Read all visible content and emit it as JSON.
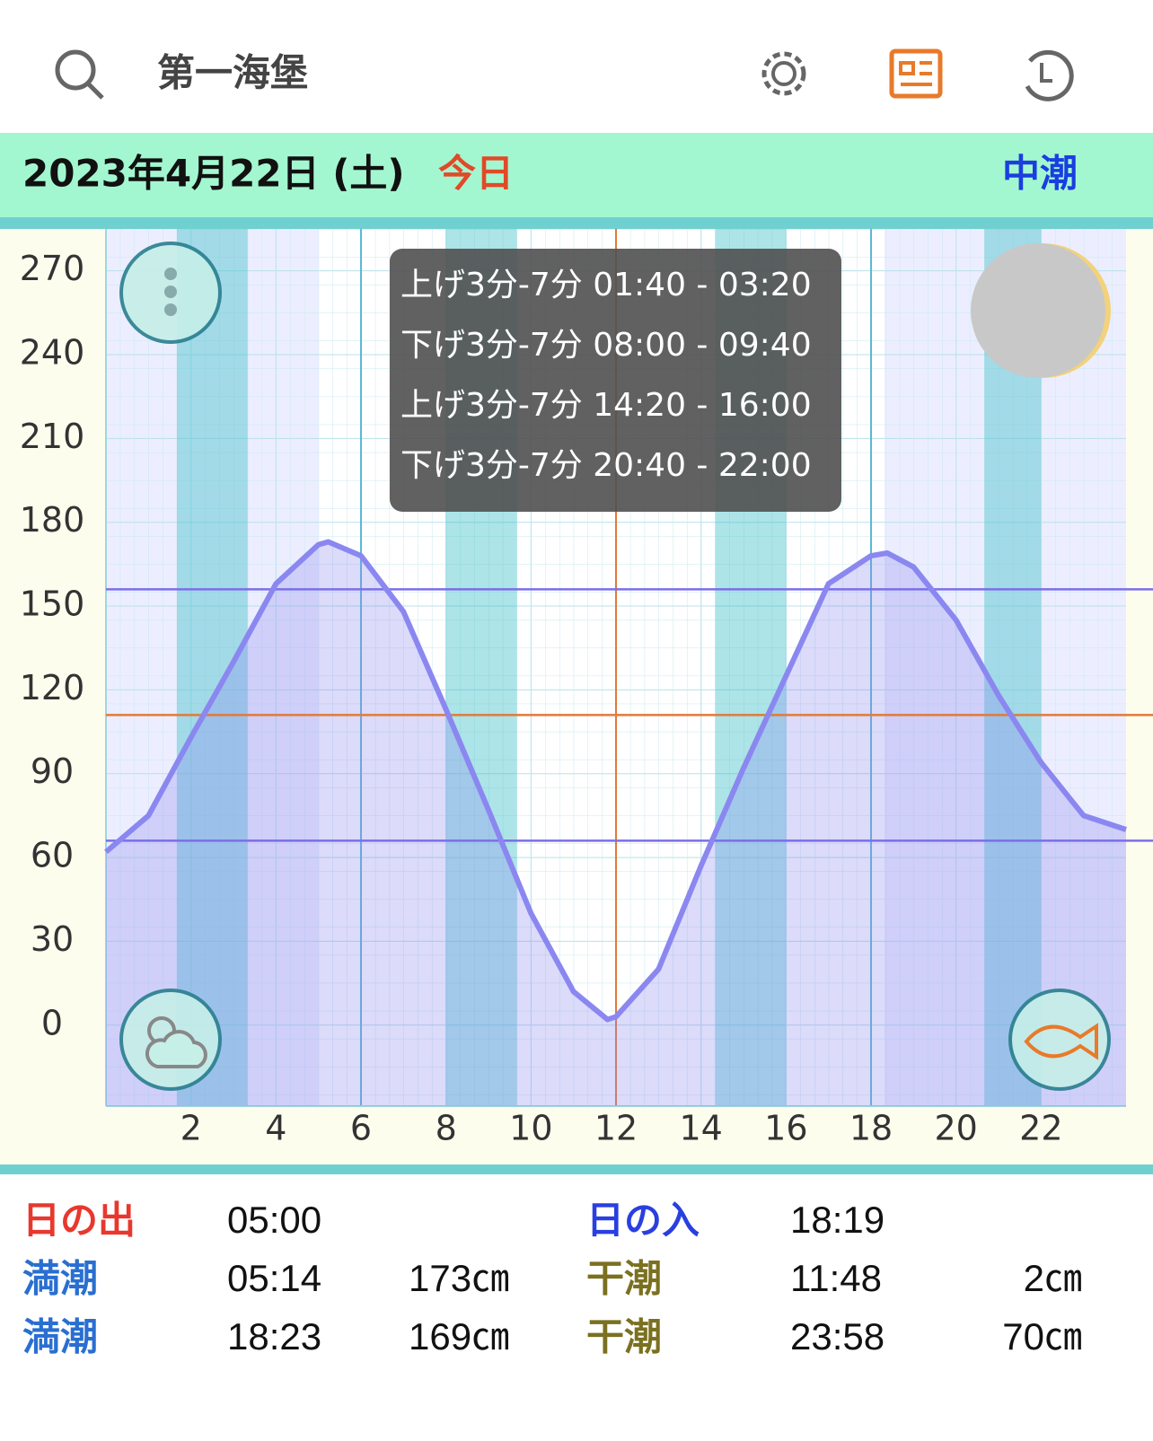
{
  "header": {
    "title": "第一海堡"
  },
  "date_bar": {
    "date": "2023年4月22日 (土)",
    "today": "今日",
    "tide_type": "中潮"
  },
  "chart_data": {
    "type": "area-line",
    "x": [
      0,
      1,
      2,
      3,
      4,
      5,
      5.23,
      6,
      7,
      8,
      9,
      10,
      11,
      11.8,
      12,
      13,
      14,
      15,
      16,
      17,
      18,
      18.38,
      19,
      20,
      21,
      22,
      23,
      24
    ],
    "series": [
      {
        "color": "#8b87f0",
        "values": [
          62,
          75,
          103,
          130,
          158,
          172,
          173,
          168,
          148,
          113,
          77,
          40,
          12,
          2,
          3,
          20,
          57,
          92,
          125,
          158,
          168,
          169,
          164,
          145,
          118,
          94,
          75,
          70
        ]
      }
    ],
    "xlim": [
      0,
      24
    ],
    "xticks": [
      2,
      4,
      6,
      8,
      10,
      12,
      14,
      16,
      18,
      20,
      22
    ],
    "ylim": [
      -29,
      285
    ],
    "yticks": [
      0,
      30,
      60,
      90,
      120,
      150,
      180,
      210,
      240,
      270
    ],
    "bands": [
      {
        "label": "上げ3分-7分 01:40 - 03:20",
        "start": 1.667,
        "end": 3.333
      },
      {
        "label": "下げ3分-7分 08:00 - 09:40",
        "start": 8,
        "end": 9.667
      },
      {
        "label": "上げ3分-7分 14:20 - 16:00",
        "start": 14.333,
        "end": 16
      },
      {
        "label": "下げ3分-7分 20:40 - 22:00",
        "start": 20.667,
        "end": 22
      }
    ],
    "night": [
      {
        "start": 0,
        "end": 5
      },
      {
        "start": 18.32,
        "end": 24
      }
    ],
    "vlines": [
      {
        "value": 6,
        "color": "#5cb8d6"
      },
      {
        "value": 12,
        "color": "#e07a3a"
      },
      {
        "value": 18,
        "color": "#5cb8d6"
      }
    ],
    "hlines": [
      {
        "value": 156,
        "color": "#7b6ee8"
      },
      {
        "value": 111,
        "color": "#e07a3a"
      },
      {
        "value": 66,
        "color": "#7b6ee8"
      }
    ]
  },
  "tide_table": {
    "rows": [
      {
        "left": {
          "label": "日の出",
          "time": "05:00"
        },
        "right": {
          "label": "日の入",
          "time": "18:19"
        }
      },
      {
        "left": {
          "label": "満潮",
          "time": "05:14",
          "height": "173㎝"
        },
        "right": {
          "label": "干潮",
          "time": "11:48",
          "height": "2㎝"
        }
      },
      {
        "left": {
          "label": "満潮",
          "time": "18:23",
          "height": "169㎝"
        },
        "right": {
          "label": "干潮",
          "time": "23:58",
          "height": "70㎝"
        }
      }
    ]
  }
}
